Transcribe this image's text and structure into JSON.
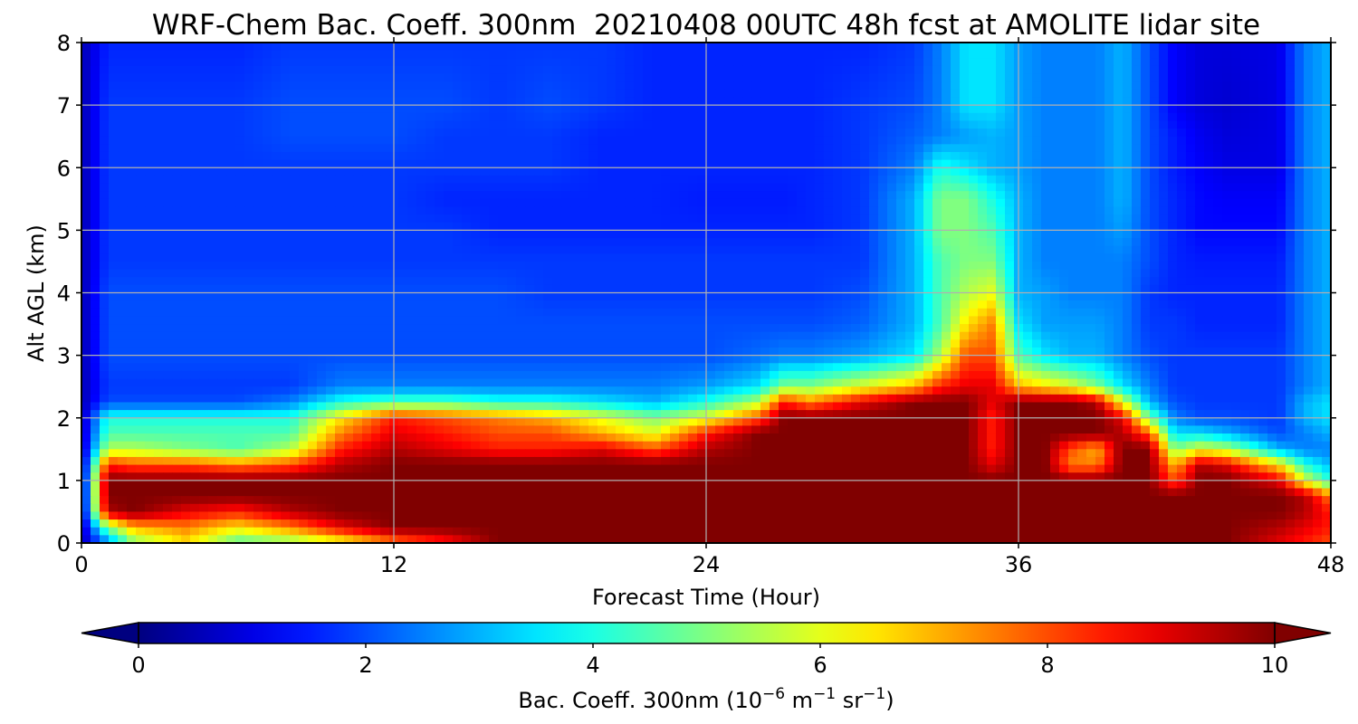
{
  "chart_data": {
    "type": "heatmap",
    "title": "WRF-Chem Bac. Coeff. 300nm  20210408 00UTC 48h fcst at AMOLITE lidar site",
    "xlabel": "Forecast Time (Hour)",
    "ylabel": "Alt AGL (km)",
    "xlim": [
      0,
      48
    ],
    "ylim": [
      0,
      8
    ],
    "xticks": [
      "0",
      "12",
      "24",
      "36",
      "48"
    ],
    "yticks": [
      "0",
      "1",
      "2",
      "3",
      "4",
      "5",
      "6",
      "7",
      "8"
    ],
    "grid": true,
    "colorbar": {
      "label_prefix": "Bac. Coeff. 300nm  (10",
      "label_exp1": "−6",
      "label_mid": " m",
      "label_exp2": "−1",
      "label_mid2": " sr",
      "label_exp3": "−1",
      "label_suffix": ")",
      "ticks": [
        "0",
        "2",
        "4",
        "6",
        "8",
        "10"
      ],
      "range": [
        0,
        10
      ],
      "extend": "both",
      "colormap": "jet"
    },
    "x": [
      0,
      1,
      2,
      4,
      6,
      8,
      10,
      12,
      14,
      16,
      18,
      20,
      22,
      24,
      26,
      27,
      28,
      30,
      32,
      33,
      34,
      35,
      36,
      37,
      38,
      39,
      40,
      41,
      42,
      43,
      44,
      46,
      47,
      48
    ],
    "y": [
      0,
      0.25,
      0.5,
      0.75,
      1.0,
      1.25,
      1.5,
      1.75,
      2.0,
      2.25,
      2.5,
      3.0,
      3.5,
      4.0,
      4.5,
      5.0,
      5.5,
      6.0,
      6.5,
      7.0,
      8.0
    ],
    "values": [
      [
        0.5,
        2.5,
        5.0,
        6.5,
        4.5,
        5.0,
        6.0,
        7.5,
        8.5,
        10.0,
        10.0,
        10.0,
        10.0,
        10.0,
        10.0,
        10.0,
        10.0,
        10.0,
        10.0,
        10.0,
        10.0,
        10.0,
        10.0,
        10.0,
        10.0,
        10.0,
        10.0,
        10.0,
        10.0,
        10.0,
        10.0,
        9.0,
        8.5,
        8.0
      ],
      [
        0.5,
        5.0,
        7.0,
        7.5,
        6.5,
        7.5,
        9.0,
        10.0,
        10.0,
        10.0,
        10.0,
        10.0,
        10.0,
        10.0,
        10.0,
        10.0,
        10.0,
        10.0,
        10.0,
        10.0,
        10.0,
        10.0,
        10.0,
        10.0,
        10.0,
        10.0,
        10.0,
        10.0,
        10.0,
        10.0,
        10.0,
        9.5,
        9.0,
        8.5
      ],
      [
        0.5,
        9.5,
        10.0,
        9.0,
        8.5,
        9.5,
        10.0,
        10.0,
        10.0,
        10.0,
        10.0,
        10.0,
        10.0,
        10.0,
        10.0,
        10.0,
        10.0,
        10.0,
        10.0,
        10.0,
        10.0,
        10.0,
        10.0,
        10.0,
        10.0,
        10.0,
        10.0,
        10.0,
        10.0,
        10.0,
        10.0,
        10.0,
        9.5,
        8.5
      ],
      [
        0.5,
        10.0,
        10.0,
        10.0,
        10.0,
        10.0,
        10.0,
        10.0,
        10.0,
        10.0,
        10.0,
        10.0,
        10.0,
        10.0,
        10.0,
        10.0,
        10.0,
        10.0,
        10.0,
        10.0,
        10.0,
        10.0,
        10.0,
        10.0,
        10.0,
        10.0,
        10.0,
        10.0,
        10.0,
        10.0,
        10.0,
        10.0,
        9.5,
        7.5
      ],
      [
        0.5,
        10.0,
        10.0,
        10.0,
        10.0,
        10.0,
        10.0,
        10.0,
        10.0,
        10.0,
        10.0,
        10.0,
        10.0,
        10.0,
        10.0,
        10.0,
        10.0,
        10.0,
        10.0,
        10.0,
        10.0,
        10.0,
        10.0,
        10.0,
        10.0,
        10.0,
        10.0,
        10.0,
        8.0,
        10.0,
        10.0,
        9.0,
        6.0,
        4.0
      ],
      [
        0.5,
        8.5,
        8.0,
        8.0,
        7.5,
        8.0,
        9.5,
        10.0,
        10.0,
        10.0,
        10.0,
        10.0,
        10.0,
        10.0,
        10.0,
        10.0,
        10.0,
        10.0,
        10.0,
        10.0,
        10.0,
        9.0,
        10.0,
        10.0,
        7.5,
        7.5,
        10.0,
        10.0,
        7.0,
        9.5,
        9.0,
        6.5,
        4.0,
        3.0
      ],
      [
        0.5,
        5.5,
        5.5,
        5.0,
        4.5,
        5.5,
        8.5,
        9.5,
        9.0,
        8.5,
        8.5,
        9.0,
        8.0,
        9.5,
        10.0,
        10.0,
        10.0,
        10.0,
        10.0,
        10.0,
        10.0,
        8.5,
        10.0,
        10.0,
        8.0,
        7.0,
        10.0,
        10.0,
        5.0,
        6.0,
        5.5,
        3.0,
        2.5,
        2.5
      ],
      [
        0.5,
        4.5,
        4.5,
        4.5,
        4.5,
        4.5,
        7.5,
        9.0,
        8.5,
        8.0,
        8.0,
        7.0,
        6.0,
        8.5,
        10.0,
        10.0,
        10.0,
        10.0,
        10.0,
        10.0,
        10.0,
        8.5,
        10.0,
        10.0,
        10.0,
        10.0,
        9.5,
        8.0,
        3.5,
        3.5,
        3.0,
        2.0,
        2.5,
        3.0
      ],
      [
        0.5,
        4.0,
        4.0,
        4.0,
        4.0,
        4.0,
        6.5,
        8.5,
        8.0,
        7.5,
        7.0,
        6.0,
        5.0,
        6.0,
        8.0,
        10.0,
        10.0,
        10.0,
        10.0,
        10.0,
        10.0,
        8.5,
        10.0,
        10.0,
        10.0,
        10.0,
        9.0,
        5.0,
        2.5,
        2.0,
        2.0,
        1.8,
        3.0,
        3.5
      ],
      [
        0.5,
        2.0,
        2.0,
        2.0,
        2.0,
        2.5,
        4.0,
        4.5,
        4.5,
        4.0,
        4.0,
        3.5,
        3.0,
        4.0,
        5.5,
        8.5,
        7.5,
        9.0,
        10.0,
        10.0,
        10.0,
        9.0,
        10.0,
        10.0,
        10.0,
        9.5,
        6.0,
        3.0,
        2.0,
        1.8,
        1.8,
        1.8,
        3.0,
        3.5
      ],
      [
        0.5,
        1.8,
        1.8,
        1.8,
        1.8,
        1.8,
        2.5,
        2.5,
        2.5,
        2.5,
        2.5,
        2.5,
        2.5,
        2.8,
        3.5,
        5.0,
        5.0,
        6.0,
        7.0,
        8.5,
        9.0,
        9.0,
        7.0,
        6.5,
        6.0,
        5.0,
        3.5,
        2.5,
        1.8,
        1.8,
        1.8,
        1.8,
        2.5,
        3.0
      ],
      [
        0.5,
        2.0,
        2.0,
        2.0,
        2.0,
        2.0,
        2.0,
        2.0,
        2.0,
        2.0,
        2.0,
        2.0,
        2.0,
        2.0,
        2.3,
        2.5,
        2.5,
        2.8,
        3.5,
        5.5,
        8.0,
        8.0,
        4.5,
        3.5,
        3.0,
        3.0,
        2.5,
        2.0,
        1.8,
        1.8,
        1.8,
        1.8,
        2.5,
        3.0
      ],
      [
        0.5,
        2.0,
        2.0,
        2.0,
        2.0,
        2.0,
        2.0,
        2.0,
        2.0,
        2.0,
        2.0,
        2.0,
        2.0,
        2.0,
        2.0,
        2.0,
        2.0,
        2.2,
        3.0,
        4.5,
        6.5,
        7.5,
        3.5,
        2.8,
        2.8,
        2.8,
        2.5,
        1.8,
        1.8,
        1.6,
        1.6,
        1.6,
        2.5,
        3.0
      ],
      [
        0.5,
        2.0,
        2.0,
        2.0,
        2.0,
        2.0,
        2.0,
        2.0,
        2.0,
        2.0,
        1.8,
        1.8,
        1.8,
        1.8,
        1.8,
        1.8,
        1.8,
        2.0,
        3.0,
        4.5,
        5.5,
        6.0,
        3.0,
        2.8,
        2.5,
        2.5,
        2.5,
        1.8,
        1.6,
        1.6,
        1.6,
        1.6,
        2.5,
        3.0
      ],
      [
        0.5,
        1.8,
        1.8,
        1.8,
        1.8,
        1.8,
        1.8,
        1.8,
        1.8,
        1.8,
        1.8,
        1.8,
        1.8,
        1.8,
        1.8,
        1.8,
        1.8,
        1.8,
        3.0,
        4.5,
        5.0,
        5.0,
        3.0,
        2.5,
        2.5,
        2.5,
        2.5,
        2.0,
        1.6,
        1.5,
        1.5,
        1.5,
        2.5,
        3.0
      ],
      [
        0.5,
        1.8,
        1.8,
        1.8,
        1.8,
        1.8,
        1.8,
        1.8,
        1.8,
        1.6,
        1.6,
        1.6,
        1.6,
        1.6,
        1.6,
        1.6,
        1.6,
        1.8,
        3.0,
        5.0,
        5.0,
        4.5,
        3.0,
        2.5,
        2.5,
        2.5,
        2.8,
        2.0,
        1.6,
        1.3,
        1.3,
        1.3,
        2.5,
        3.0
      ],
      [
        0.5,
        1.8,
        1.8,
        1.8,
        1.8,
        1.8,
        1.8,
        1.8,
        1.6,
        1.6,
        1.6,
        1.6,
        1.6,
        1.5,
        1.5,
        1.5,
        1.6,
        1.8,
        3.0,
        5.0,
        5.0,
        4.0,
        3.0,
        2.5,
        2.5,
        2.5,
        3.0,
        2.0,
        1.6,
        1.3,
        1.2,
        1.2,
        2.5,
        3.0
      ],
      [
        0.5,
        1.8,
        1.8,
        1.8,
        1.8,
        1.8,
        1.8,
        1.8,
        1.8,
        1.8,
        1.8,
        1.6,
        1.6,
        1.6,
        1.6,
        1.6,
        1.6,
        1.8,
        2.5,
        4.0,
        3.5,
        3.0,
        2.8,
        2.5,
        2.5,
        2.5,
        3.0,
        2.0,
        1.5,
        1.2,
        1.0,
        1.0,
        2.5,
        3.0
      ],
      [
        0.5,
        1.8,
        1.8,
        1.8,
        1.8,
        2.0,
        2.0,
        2.0,
        1.8,
        1.8,
        1.8,
        1.6,
        1.6,
        1.6,
        1.6,
        1.6,
        1.6,
        1.8,
        2.2,
        2.5,
        2.8,
        3.0,
        2.8,
        2.5,
        2.5,
        2.5,
        3.0,
        2.0,
        1.5,
        1.1,
        0.9,
        1.0,
        2.5,
        3.0
      ],
      [
        0.5,
        1.8,
        1.8,
        1.8,
        1.8,
        2.0,
        2.0,
        2.0,
        2.0,
        1.8,
        2.0,
        1.8,
        1.6,
        1.6,
        1.6,
        1.6,
        1.6,
        1.8,
        2.0,
        2.5,
        3.5,
        3.5,
        2.8,
        2.5,
        2.5,
        2.5,
        3.0,
        2.0,
        1.2,
        0.9,
        0.8,
        1.0,
        2.5,
        3.0
      ],
      [
        0.5,
        1.6,
        1.6,
        1.6,
        1.6,
        1.8,
        1.8,
        1.8,
        1.8,
        1.8,
        1.8,
        1.8,
        1.6,
        1.6,
        1.6,
        1.6,
        1.6,
        1.6,
        1.8,
        2.5,
        3.5,
        3.5,
        2.8,
        2.5,
        2.5,
        2.5,
        3.0,
        2.0,
        1.2,
        0.9,
        0.9,
        1.0,
        2.5,
        3.0
      ]
    ]
  }
}
